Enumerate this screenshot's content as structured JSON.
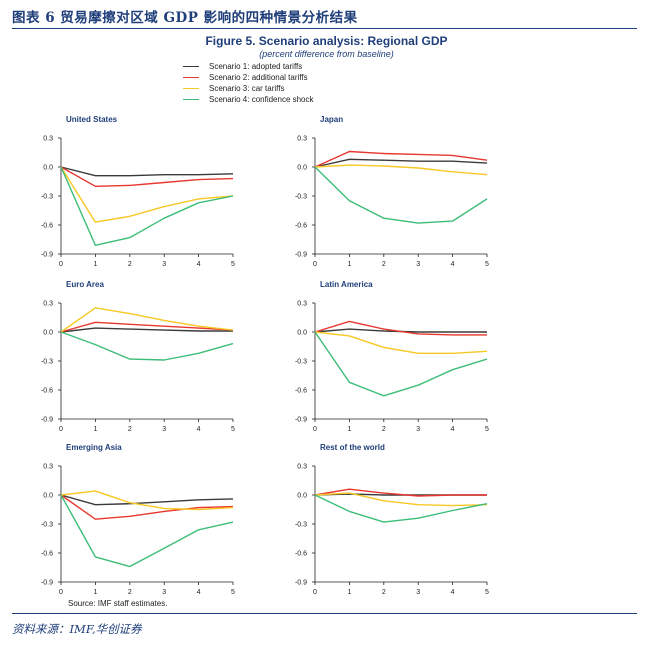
{
  "header": {
    "title": "图表 6   贸易摩擦对区域 GDP 影响的四种情景分析结果"
  },
  "figure": {
    "title": "Figure 5. Scenario analysis: Regional GDP",
    "subtitle": "(percent difference from baseline)"
  },
  "legend": [
    {
      "name": "Scenario 1: adopted tariffs",
      "color": "#3a3a3a"
    },
    {
      "name": "Scenario 2: additional tariffs",
      "color": "#e8372f"
    },
    {
      "name": "Scenario 3: car tariffs",
      "color": "#f7c823"
    },
    {
      "name": "Scenario 4: confidence shock",
      "color": "#3dbd78"
    }
  ],
  "chart_data": [
    {
      "type": "line",
      "title": "United States",
      "x": [
        0,
        1,
        2,
        3,
        4,
        5
      ],
      "ylim": [
        -0.9,
        0.3
      ],
      "yticks": [
        "0.3",
        "0.0",
        "-0.3",
        "-0.6",
        "-0.9"
      ],
      "xticks": [
        "0",
        "1",
        "2",
        "3",
        "4",
        "5"
      ],
      "series": [
        {
          "name": "Scenario 1: adopted tariffs",
          "values": [
            0,
            -0.09,
            -0.09,
            -0.08,
            -0.08,
            -0.07
          ]
        },
        {
          "name": "Scenario 2: additional tariffs",
          "values": [
            0,
            -0.2,
            -0.19,
            -0.16,
            -0.13,
            -0.12
          ]
        },
        {
          "name": "Scenario 3: car tariffs",
          "values": [
            0,
            -0.57,
            -0.51,
            -0.41,
            -0.33,
            -0.3
          ]
        },
        {
          "name": "Scenario 4: confidence shock",
          "values": [
            0,
            -0.81,
            -0.73,
            -0.53,
            -0.37,
            -0.3
          ]
        }
      ]
    },
    {
      "type": "line",
      "title": "Japan",
      "x": [
        0,
        1,
        2,
        3,
        4,
        5
      ],
      "ylim": [
        -0.9,
        0.3
      ],
      "yticks": [
        "0.3",
        "0.0",
        "-0.3",
        "-0.6",
        "-0.9"
      ],
      "xticks": [
        "0",
        "1",
        "2",
        "3",
        "4",
        "5"
      ],
      "series": [
        {
          "name": "Scenario 1: adopted tariffs",
          "values": [
            0,
            0.08,
            0.07,
            0.06,
            0.06,
            0.04
          ]
        },
        {
          "name": "Scenario 2: additional tariffs",
          "values": [
            0,
            0.16,
            0.14,
            0.13,
            0.12,
            0.07
          ]
        },
        {
          "name": "Scenario 3: car tariffs",
          "values": [
            0,
            0.02,
            0.01,
            -0.01,
            -0.05,
            -0.08
          ]
        },
        {
          "name": "Scenario 4: confidence shock",
          "values": [
            0,
            -0.35,
            -0.53,
            -0.58,
            -0.56,
            -0.33
          ]
        }
      ]
    },
    {
      "type": "line",
      "title": "Euro Area",
      "x": [
        0,
        1,
        2,
        3,
        4,
        5
      ],
      "ylim": [
        -0.9,
        0.3
      ],
      "yticks": [
        "0.3",
        "0.0",
        "-0.3",
        "-0.6",
        "-0.9"
      ],
      "xticks": [
        "0",
        "1",
        "2",
        "3",
        "4",
        "5"
      ],
      "series": [
        {
          "name": "Scenario 1: adopted tariffs",
          "values": [
            0,
            0.04,
            0.03,
            0.02,
            0.01,
            0.01
          ]
        },
        {
          "name": "Scenario 2: additional tariffs",
          "values": [
            0,
            0.1,
            0.08,
            0.06,
            0.04,
            0.02
          ]
        },
        {
          "name": "Scenario 3: car tariffs",
          "values": [
            0,
            0.25,
            0.19,
            0.12,
            0.06,
            0.02
          ]
        },
        {
          "name": "Scenario 4: confidence shock",
          "values": [
            0,
            -0.13,
            -0.28,
            -0.29,
            -0.22,
            -0.12
          ]
        }
      ]
    },
    {
      "type": "line",
      "title": "Latin America",
      "x": [
        0,
        1,
        2,
        3,
        4,
        5
      ],
      "ylim": [
        -0.9,
        0.3
      ],
      "yticks": [
        "0.3",
        "0.0",
        "-0.3",
        "-0.6",
        "-0.9"
      ],
      "xticks": [
        "0",
        "1",
        "2",
        "3",
        "4",
        "5"
      ],
      "series": [
        {
          "name": "Scenario 1: adopted tariffs",
          "values": [
            0,
            0.03,
            0.01,
            0.0,
            0.0,
            0.0
          ]
        },
        {
          "name": "Scenario 2: additional tariffs",
          "values": [
            0,
            0.11,
            0.03,
            -0.02,
            -0.03,
            -0.03
          ]
        },
        {
          "name": "Scenario 3: car tariffs",
          "values": [
            0,
            -0.04,
            -0.16,
            -0.22,
            -0.22,
            -0.2
          ]
        },
        {
          "name": "Scenario 4: confidence shock",
          "values": [
            0,
            -0.52,
            -0.66,
            -0.55,
            -0.39,
            -0.28
          ]
        }
      ]
    },
    {
      "type": "line",
      "title": "Emerging Asia",
      "x": [
        0,
        1,
        2,
        3,
        4,
        5
      ],
      "ylim": [
        -0.9,
        0.3
      ],
      "yticks": [
        "0.3",
        "0.0",
        "-0.3",
        "-0.6",
        "-0.9"
      ],
      "xticks": [
        "0",
        "1",
        "2",
        "3",
        "4",
        "5"
      ],
      "series": [
        {
          "name": "Scenario 1: adopted tariffs",
          "values": [
            0,
            -0.1,
            -0.09,
            -0.07,
            -0.05,
            -0.04
          ]
        },
        {
          "name": "Scenario 2: additional tariffs",
          "values": [
            0,
            -0.25,
            -0.22,
            -0.17,
            -0.13,
            -0.12
          ]
        },
        {
          "name": "Scenario 3: car tariffs",
          "values": [
            0,
            0.04,
            -0.08,
            -0.14,
            -0.15,
            -0.13
          ]
        },
        {
          "name": "Scenario 4: confidence shock",
          "values": [
            0,
            -0.64,
            -0.74,
            -0.55,
            -0.36,
            -0.28
          ]
        }
      ]
    },
    {
      "type": "line",
      "title": "Rest of the world",
      "x": [
        0,
        1,
        2,
        3,
        4,
        5
      ],
      "ylim": [
        -0.9,
        0.3
      ],
      "yticks": [
        "0.3",
        "0.0",
        "-0.3",
        "-0.6",
        "-0.9"
      ],
      "xticks": [
        "0",
        "1",
        "2",
        "3",
        "4",
        "5"
      ],
      "series": [
        {
          "name": "Scenario 1: adopted tariffs",
          "values": [
            0,
            0.01,
            0.0,
            0.0,
            0.0,
            0.0
          ]
        },
        {
          "name": "Scenario 2: additional tariffs",
          "values": [
            0,
            0.06,
            0.02,
            -0.01,
            0.0,
            0.0
          ]
        },
        {
          "name": "Scenario 3: car tariffs",
          "values": [
            0,
            0.02,
            -0.06,
            -0.1,
            -0.11,
            -0.1
          ]
        },
        {
          "name": "Scenario 4: confidence shock",
          "values": [
            0,
            -0.17,
            -0.28,
            -0.24,
            -0.16,
            -0.09
          ]
        }
      ]
    }
  ],
  "source": "Source: IMF staff estimates.",
  "footer": {
    "note": "资料来源：IMF,华创证券"
  }
}
